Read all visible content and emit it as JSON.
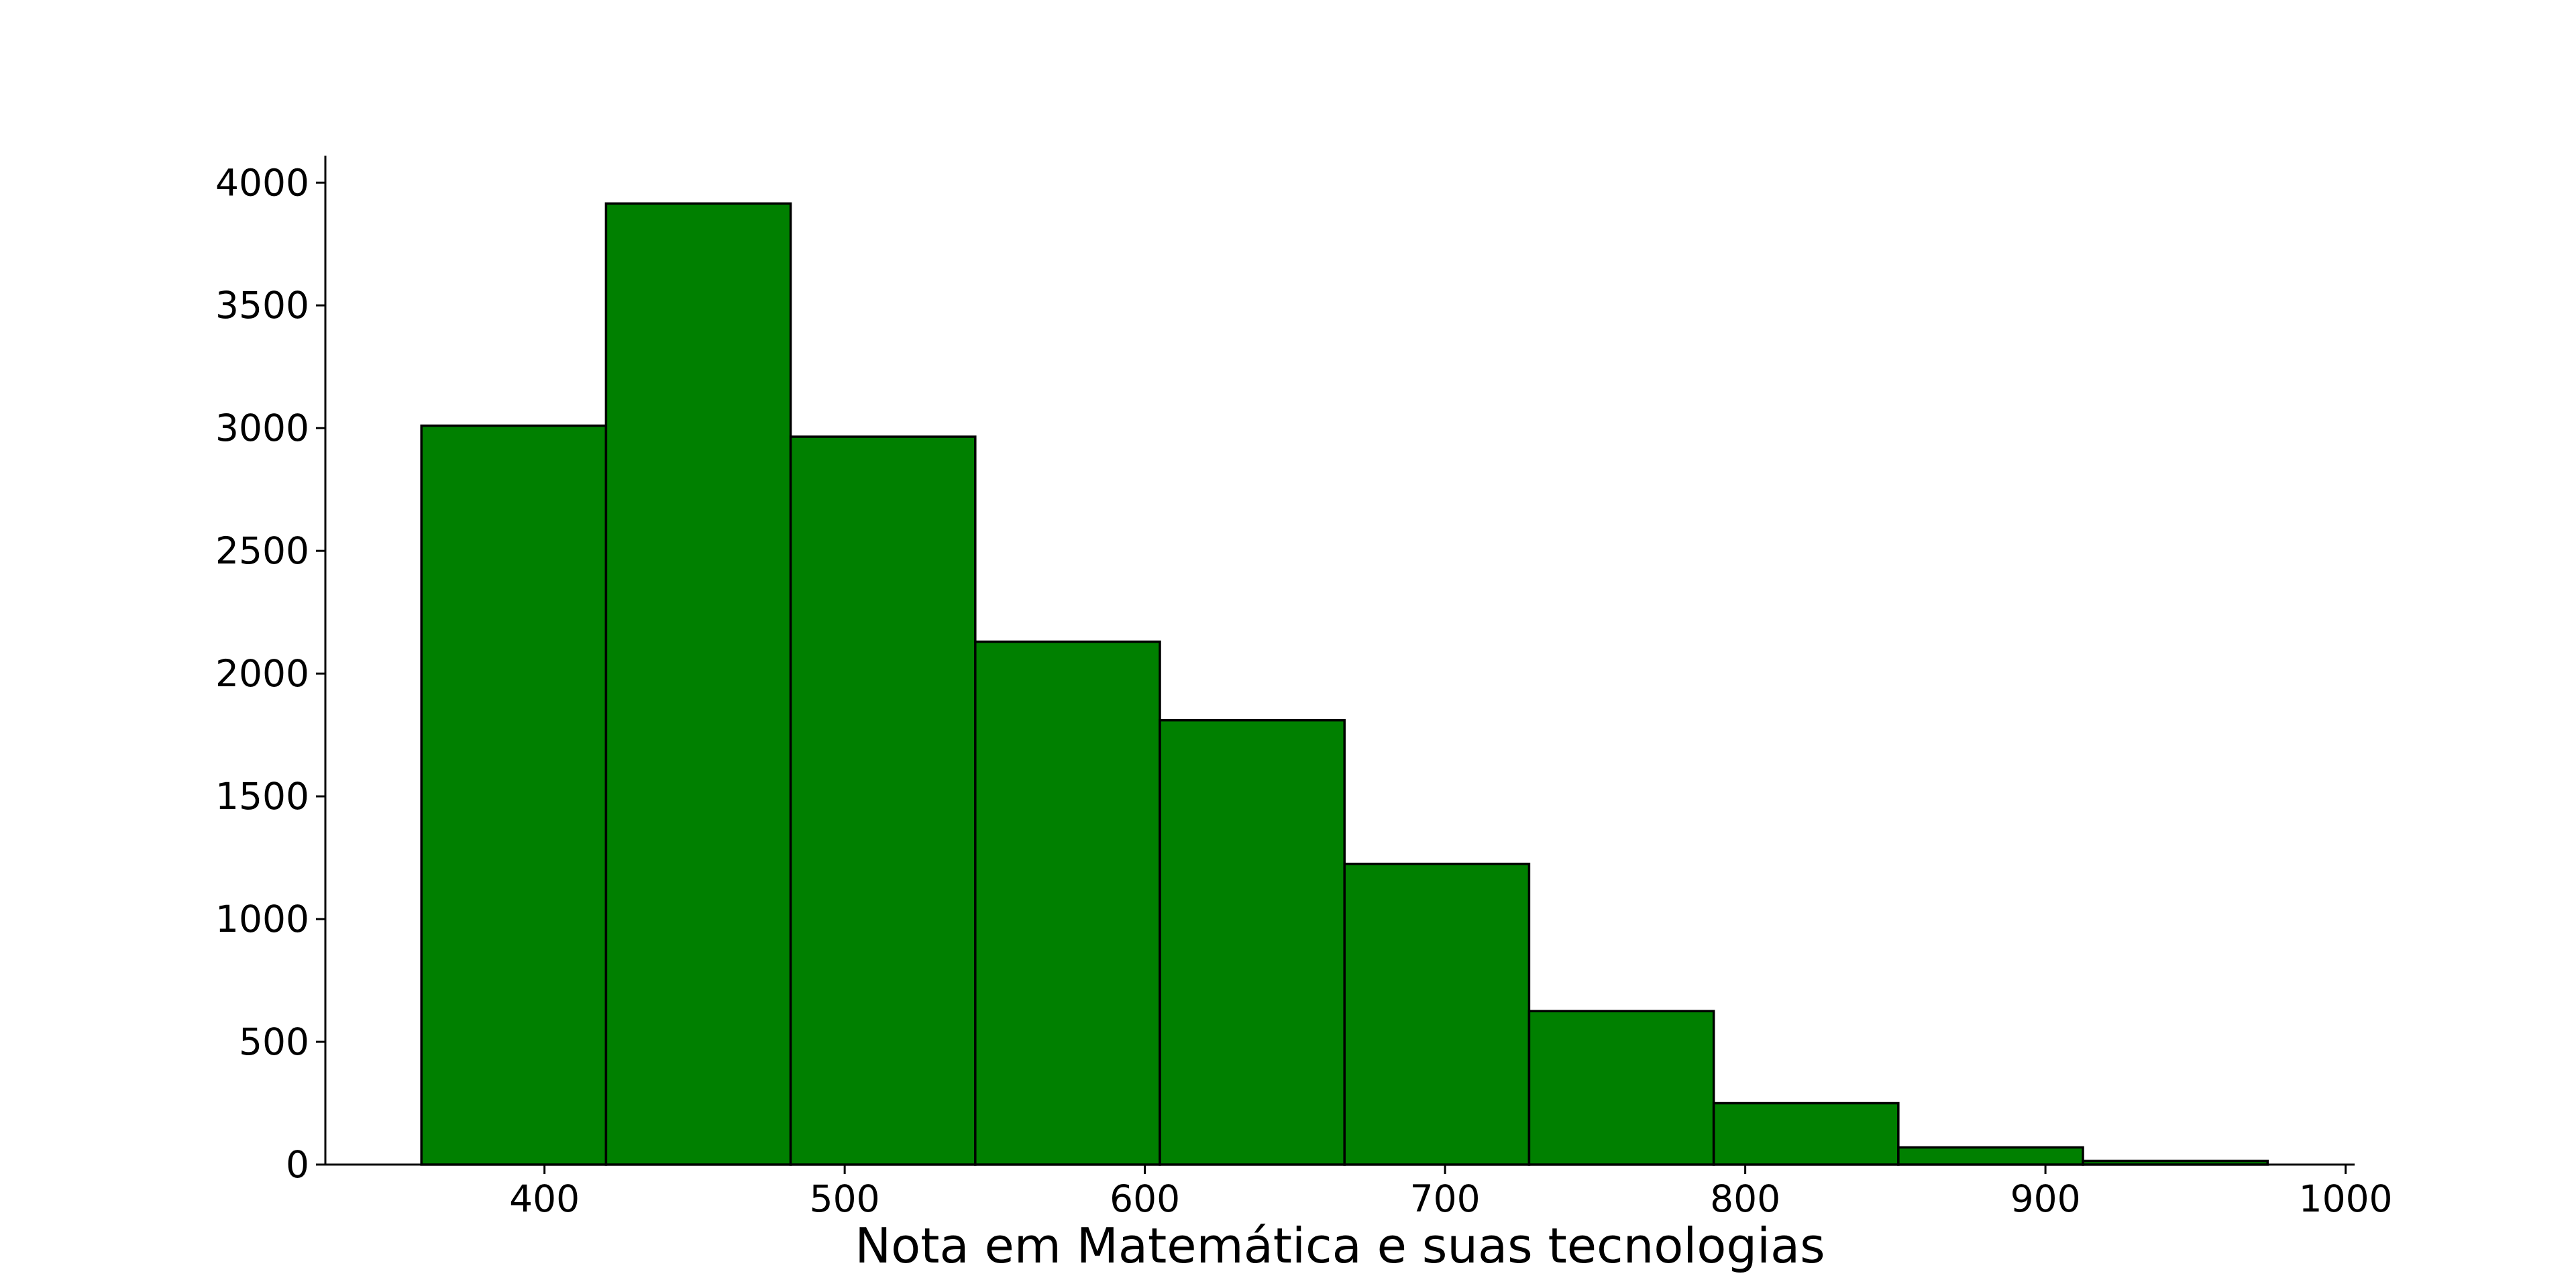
{
  "chart_data": {
    "type": "bar",
    "title": "",
    "xlabel": "Nota em Matemática e suas tecnologias",
    "ylabel": "",
    "bin_edges": [
      359.0,
      420.5,
      482.0,
      543.5,
      605.0,
      666.5,
      728.0,
      789.5,
      851.0,
      912.5,
      974.0
    ],
    "values": [
      3010,
      3915,
      2965,
      2130,
      1810,
      1225,
      625,
      250,
      70,
      15
    ],
    "xlim": [
      327,
      1003
    ],
    "ylim": [
      0,
      4110
    ],
    "x_ticks": [
      400,
      500,
      600,
      700,
      800,
      900,
      1000
    ],
    "y_ticks": [
      0,
      500,
      1000,
      1500,
      2000,
      2500,
      3000,
      3500,
      4000
    ],
    "bar_color": "#008000",
    "edge_color": "#000000",
    "grid": false
  }
}
